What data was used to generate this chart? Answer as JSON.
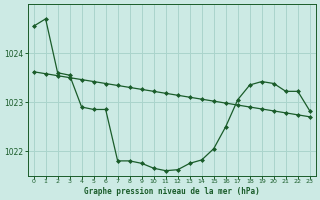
{
  "title": "Graphe pression niveau de la mer (hPa)",
  "background_color": "#cceae4",
  "grid_color": "#aad4cc",
  "line_color": "#1a5c2a",
  "x_values": [
    0,
    1,
    2,
    3,
    4,
    5,
    6,
    7,
    8,
    9,
    10,
    11,
    12,
    13,
    14,
    15,
    16,
    17,
    18,
    19,
    20,
    21,
    22,
    23
  ],
  "trend_line": [
    1023.62,
    1023.58,
    1023.54,
    1023.5,
    1023.46,
    1023.42,
    1023.38,
    1023.34,
    1023.3,
    1023.26,
    1023.22,
    1023.18,
    1023.14,
    1023.1,
    1023.06,
    1023.02,
    1022.98,
    1022.94,
    1022.9,
    1022.86,
    1022.82,
    1022.78,
    1022.74,
    1022.7
  ],
  "curved_line": [
    1024.55,
    1024.7,
    1023.6,
    1023.55,
    1022.9,
    1022.85,
    1022.85,
    1021.8,
    1021.8,
    1021.75,
    1021.65,
    1021.6,
    1021.62,
    1021.75,
    1021.82,
    1022.05,
    1022.5,
    1023.05,
    1023.35,
    1023.42,
    1023.38,
    1023.22,
    1023.22,
    1022.82
  ],
  "ylim": [
    1021.5,
    1025.0
  ],
  "yticks": [
    1022,
    1023,
    1024
  ],
  "xlim": [
    -0.5,
    23.5
  ]
}
